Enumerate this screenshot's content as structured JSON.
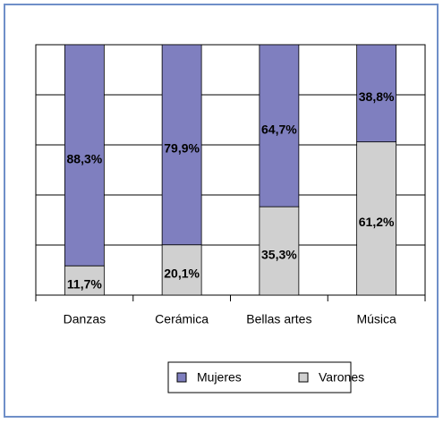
{
  "chart_data": {
    "type": "stacked_bar",
    "categories": [
      "Danzas",
      "Cerámica",
      "Bellas artes",
      "Música"
    ],
    "series": [
      {
        "name": "Varones",
        "color": "#d0d0d0",
        "values": [
          11.7,
          20.1,
          35.3,
          61.2
        ],
        "value_labels": [
          "11,7%",
          "20,1%",
          "35,3%",
          "61,2%"
        ]
      },
      {
        "name": "Mujeres",
        "color": "#7f7fbf",
        "values": [
          88.3,
          79.9,
          64.7,
          38.8
        ],
        "value_labels": [
          "88,3%",
          "79,9%",
          "64,7%",
          "38,8%"
        ]
      }
    ],
    "ylim": [
      0,
      100
    ],
    "yticks": [
      0,
      20,
      40,
      60,
      80,
      100
    ],
    "grid": true
  }
}
